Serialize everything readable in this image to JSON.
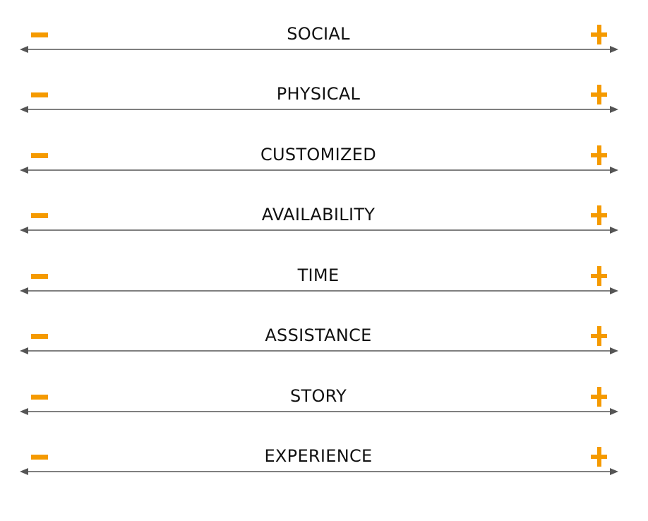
{
  "colors": {
    "accent": "#f59a00",
    "line": "#555555",
    "text": "#111111"
  },
  "icons": {
    "left": "minus-icon",
    "right": "plus-icon",
    "axis": "double-headed-arrow"
  },
  "scales": [
    {
      "label": "SOCIAL"
    },
    {
      "label": "PHYSICAL"
    },
    {
      "label": "CUSTOMIZED"
    },
    {
      "label": "AVAILABILITY"
    },
    {
      "label": "TIME"
    },
    {
      "label": "ASSISTANCE"
    },
    {
      "label": "STORY"
    },
    {
      "label": "EXPERIENCE"
    }
  ]
}
